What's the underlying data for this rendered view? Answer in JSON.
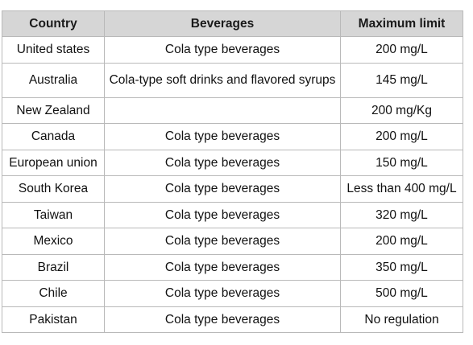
{
  "table": {
    "headers": [
      "Country",
      "Beverages",
      "Maximum limit"
    ],
    "rows": [
      {
        "country": "United states",
        "beverage": "Cola type beverages",
        "limit": "200 mg/L"
      },
      {
        "country": "Australia",
        "beverage": "Cola-type soft drinks and flavored syrups",
        "limit": "145 mg/L"
      },
      {
        "country": "New Zealand",
        "beverage": "",
        "limit": "200 mg/Kg"
      },
      {
        "country": "Canada",
        "beverage": "Cola type beverages",
        "limit": "200 mg/L"
      },
      {
        "country": "European union",
        "beverage": "Cola type beverages",
        "limit": "150 mg/L"
      },
      {
        "country": "South Korea",
        "beverage": "Cola type beverages",
        "limit": "Less than 400 mg/L"
      },
      {
        "country": "Taiwan",
        "beverage": "Cola type beverages",
        "limit": "320 mg/L"
      },
      {
        "country": "Mexico",
        "beverage": "Cola type beverages",
        "limit": "200 mg/L"
      },
      {
        "country": "Brazil",
        "beverage": "Cola type beverages",
        "limit": "350 mg/L"
      },
      {
        "country": "Chile",
        "beverage": "Cola type beverages",
        "limit": "500 mg/L"
      },
      {
        "country": "Pakistan",
        "beverage": "Cola type beverages",
        "limit": "No regulation"
      }
    ]
  }
}
